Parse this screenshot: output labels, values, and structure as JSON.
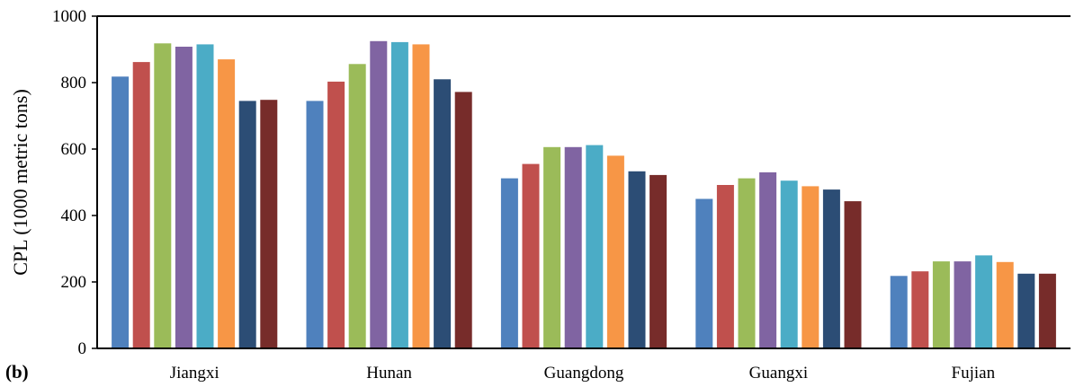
{
  "panel_label": "(b)",
  "chart_data": {
    "type": "bar",
    "title": "",
    "xlabel": "",
    "ylabel": "CPL (1000 metric tons)",
    "ylim": [
      0,
      1000
    ],
    "yticks": [
      0,
      200,
      400,
      600,
      800,
      1000
    ],
    "grid": false,
    "legend": "none",
    "categories": [
      "Jiangxi",
      "Hunan",
      "Guangdong",
      "Guangxi",
      "Fujian"
    ],
    "series": [
      {
        "color": "#4F81BD",
        "values": [
          818,
          745,
          512,
          450,
          218
        ]
      },
      {
        "color": "#C0504D",
        "values": [
          862,
          803,
          555,
          492,
          232
        ]
      },
      {
        "color": "#9BBB59",
        "values": [
          918,
          856,
          606,
          512,
          262
        ]
      },
      {
        "color": "#8064A2",
        "values": [
          908,
          925,
          606,
          530,
          262
        ]
      },
      {
        "color": "#4BACC6",
        "values": [
          915,
          922,
          612,
          505,
          280
        ]
      },
      {
        "color": "#F79646",
        "values": [
          870,
          915,
          580,
          488,
          260
        ]
      },
      {
        "color": "#2C4D75",
        "values": [
          745,
          810,
          533,
          478,
          225
        ]
      },
      {
        "color": "#772C2A",
        "values": [
          748,
          772,
          522,
          443,
          225
        ]
      }
    ]
  }
}
